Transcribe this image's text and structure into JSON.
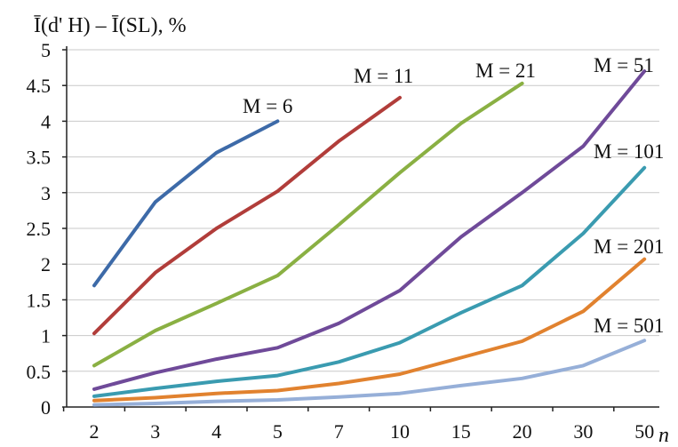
{
  "chart_data": {
    "type": "line",
    "title": "",
    "ylabel": "Ī(d' H) – Ī(SL), %",
    "xlabel": "n",
    "categories": [
      "2",
      "3",
      "4",
      "5",
      "7",
      "10",
      "15",
      "20",
      "30",
      "50"
    ],
    "ylim": [
      0,
      5
    ],
    "yticks": [
      "0",
      "0.5",
      "1",
      "1.5",
      "2",
      "2.5",
      "3",
      "3.5",
      "4",
      "4.5",
      "5"
    ],
    "grid": "horizontal",
    "legend": "none",
    "series": [
      {
        "name": "M = 6",
        "color": "#3d6aa8",
        "values": [
          1.7,
          2.87,
          3.56,
          4.0,
          null,
          null,
          null,
          null,
          null,
          null
        ]
      },
      {
        "name": "M = 11",
        "color": "#b13d3a",
        "values": [
          1.03,
          1.88,
          2.5,
          3.02,
          3.72,
          4.33,
          null,
          null,
          null,
          null
        ]
      },
      {
        "name": "M = 21",
        "color": "#8ab043",
        "values": [
          0.58,
          1.07,
          1.45,
          1.84,
          2.55,
          3.28,
          3.97,
          4.53,
          null,
          null
        ]
      },
      {
        "name": "M = 51",
        "color": "#6f4a99",
        "values": [
          0.25,
          0.48,
          0.67,
          0.83,
          1.17,
          1.63,
          2.38,
          3.0,
          3.65,
          4.7
        ]
      },
      {
        "name": "M = 101",
        "color": "#3a9bb0",
        "values": [
          0.15,
          0.26,
          0.36,
          0.44,
          0.63,
          0.9,
          1.32,
          1.7,
          2.43,
          3.35
        ]
      },
      {
        "name": "M = 201",
        "color": "#e1822f",
        "values": [
          0.09,
          0.13,
          0.19,
          0.23,
          0.33,
          0.46,
          0.69,
          0.92,
          1.34,
          2.07
        ]
      },
      {
        "name": "M = 501",
        "color": "#96afd8",
        "values": [
          0.03,
          0.05,
          0.08,
          0.1,
          0.14,
          0.19,
          0.3,
          0.4,
          0.58,
          0.93
        ]
      }
    ]
  }
}
